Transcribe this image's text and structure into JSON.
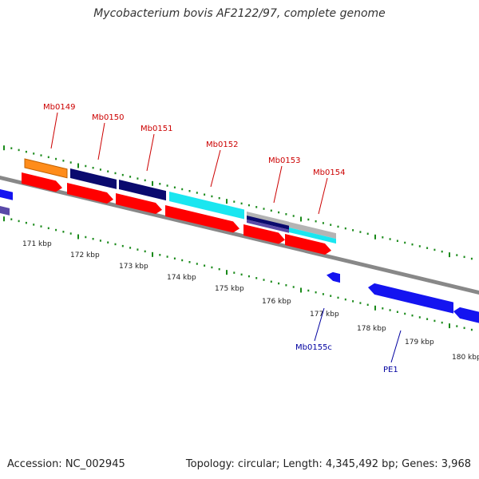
{
  "title": "Mycobacterium bovis AF2122/97, complete genome",
  "footer": {
    "accession": "Accession: NC_002945",
    "topology": "Topology: circular; Length: 4,345,492 bp; Genes: 3,968"
  },
  "colors": {
    "backbone": "#888888",
    "tick": "#1a8a1a",
    "cds_red": "#ff0000",
    "gene_navy": "#0a0a6e",
    "gene_orange": "#ff8c1a",
    "gene_cyan": "#1ae6f0",
    "gene_blue": "#1414f0",
    "gene_purple": "#5a4aa8",
    "gene_grey": "#b4b4b4",
    "label_red": "#cc0000",
    "label_blue": "#0000a0"
  },
  "scale": {
    "unit": "kbp",
    "labels": [
      "171 kbp",
      "172 kbp",
      "173 kbp",
      "174 kbp",
      "175 kbp",
      "176 kbp",
      "177 kbp",
      "178 kbp",
      "179 kbp",
      "180 kbp"
    ]
  },
  "gene_labels": [
    {
      "name": "Mb0149",
      "strand": "forward"
    },
    {
      "name": "Mb0150",
      "strand": "forward"
    },
    {
      "name": "Mb0151",
      "strand": "forward"
    },
    {
      "name": "Mb0152",
      "strand": "forward"
    },
    {
      "name": "Mb0153",
      "strand": "forward"
    },
    {
      "name": "Mb0154",
      "strand": "forward"
    },
    {
      "name": "Mb0155c",
      "strand": "reverse"
    },
    {
      "name": "PE1",
      "strand": "reverse"
    }
  ]
}
